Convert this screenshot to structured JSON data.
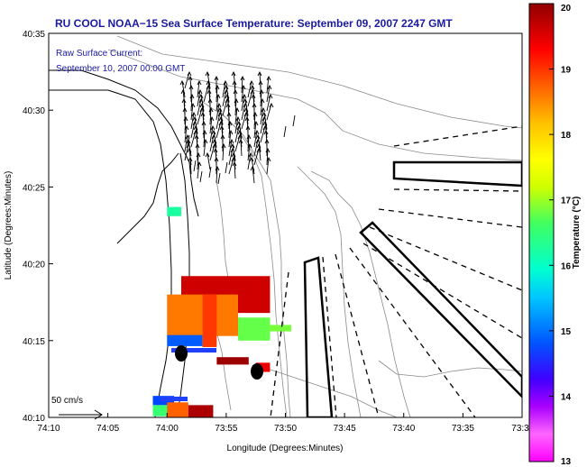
{
  "chart_data": {
    "type": "heatmap",
    "title": "RU COOL  NOAA−15  Sea Surface Temperature:  September 09, 2007 2247 GMT",
    "annotation_lines": [
      "Raw Surface Current:",
      "September 10, 2007 00:00 GMT"
    ],
    "scale_label": "50 cm/s",
    "xlabel": "Longitude (Degrees:Minutes)",
    "ylabel": "Latitude (Degrees:Minutes)",
    "x_ticks": [
      "74:10",
      "74:05",
      "74:00",
      "73:55",
      "73:50",
      "73:45",
      "73:40",
      "73:35",
      "73:3"
    ],
    "y_ticks": [
      "40:10",
      "40:15",
      "40:20",
      "40:25",
      "40:30",
      "40:35"
    ],
    "xlim": [
      "74:10",
      "73:30"
    ],
    "ylim": [
      "40:10",
      "40:35"
    ],
    "colorbar": {
      "label": "Temperature (°C)",
      "min": 13,
      "max": 20,
      "ticks": [
        "13",
        "14",
        "15",
        "16",
        "17",
        "18",
        "19",
        "20"
      ]
    },
    "temperature_patches": [
      {
        "lon_min": -74.0,
        "lon_max": -73.98,
        "lat_min": 40.385,
        "lat_max": 40.395,
        "temp": 15.6
      },
      {
        "lon_min": -73.98,
        "lon_max": -73.855,
        "lat_min": 40.28,
        "lat_max": 40.32,
        "temp": 19.6
      },
      {
        "lon_min": -74.0,
        "lon_max": -73.9,
        "lat_min": 40.255,
        "lat_max": 40.3,
        "temp": 18.4
      },
      {
        "lon_min": -73.9,
        "lon_max": -73.855,
        "lat_min": 40.25,
        "lat_max": 40.275,
        "temp": 16.2
      },
      {
        "lon_min": -73.855,
        "lon_max": -73.825,
        "lat_min": 40.26,
        "lat_max": 40.267,
        "temp": 16.3
      },
      {
        "lon_min": -74.0,
        "lon_max": -73.95,
        "lat_min": 40.244,
        "lat_max": 40.256,
        "temp": 14.1
      },
      {
        "lon_min": -73.95,
        "lon_max": -73.93,
        "lat_min": 40.243,
        "lat_max": 40.3,
        "temp": 18.9
      },
      {
        "lon_min": -73.93,
        "lon_max": -73.885,
        "lat_min": 40.224,
        "lat_max": 40.232,
        "temp": 19.9
      },
      {
        "lon_min": -73.875,
        "lon_max": -73.855,
        "lat_min": 40.216,
        "lat_max": 40.226,
        "temp": 19.4
      },
      {
        "lon_min": -74.02,
        "lon_max": -73.99,
        "lat_min": 40.18,
        "lat_max": 40.19,
        "temp": 14.0
      },
      {
        "lon_min": -74.02,
        "lon_max": -73.99,
        "lat_min": 40.168,
        "lat_max": 40.18,
        "temp": 15.9
      },
      {
        "lon_min": -74.0,
        "lon_max": -73.97,
        "lat_min": 40.165,
        "lat_max": 40.183,
        "temp": 18.6
      },
      {
        "lon_min": -73.97,
        "lon_max": -73.935,
        "lat_min": 40.165,
        "lat_max": 40.18,
        "temp": 19.8
      }
    ],
    "raw_current_vectors": "present (dense field of arrows near 40:28–40:32 N, 73:55–74:00 W)"
  }
}
